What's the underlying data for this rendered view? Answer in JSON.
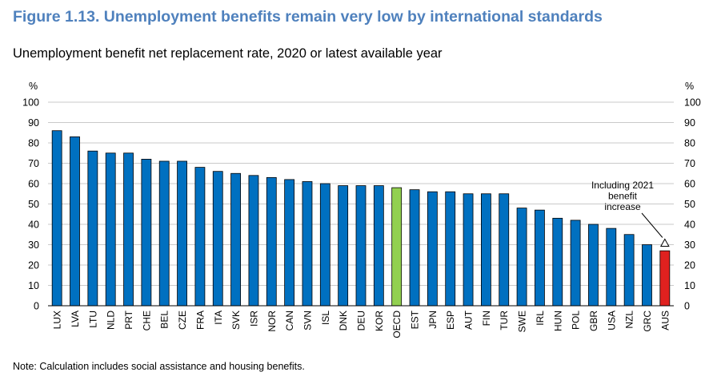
{
  "title": "Figure 1.13. Unemployment benefits remain very low by international standards",
  "subtitle": "Unemployment benefit net replacement rate, 2020 or latest available year",
  "note": "Note: Calculation includes social assistance and housing benefits.",
  "colors": {
    "title": "#4f81bd",
    "bar": "#0070c0",
    "oecd": "#92d050",
    "highlight": "#e0211f",
    "grid": "#c9c9c9"
  },
  "chart_data": {
    "type": "bar",
    "ylabel_left": "%",
    "ylabel_right": "%",
    "ylim": [
      0,
      100
    ],
    "yticks": [
      0,
      10,
      20,
      30,
      40,
      50,
      60,
      70,
      80,
      90,
      100
    ],
    "grid": true,
    "categories": [
      "LUX",
      "LVA",
      "LTU",
      "NLD",
      "PRT",
      "CHE",
      "BEL",
      "CZE",
      "FRA",
      "ITA",
      "SVK",
      "ISR",
      "NOR",
      "CAN",
      "SVN",
      "ISL",
      "DNK",
      "DEU",
      "KOR",
      "OECD",
      "EST",
      "JPN",
      "ESP",
      "AUT",
      "FIN",
      "TUR",
      "SWE",
      "IRL",
      "HUN",
      "POL",
      "GBR",
      "USA",
      "NZL",
      "GRC",
      "AUS"
    ],
    "values": [
      86,
      83,
      76,
      75,
      75,
      72,
      71,
      71,
      68,
      66,
      65,
      64,
      63,
      62,
      61,
      60,
      59,
      59,
      59,
      58,
      57,
      56,
      56,
      55,
      55,
      55,
      48,
      47,
      43,
      42,
      40,
      38,
      35,
      30,
      27
    ],
    "highlight": {
      "OECD": "oecd",
      "AUS": "highlight"
    },
    "marker": {
      "category": "AUS",
      "value": 30,
      "shape": "open-triangle"
    },
    "annotation": {
      "lines": [
        "Including 2021",
        "benefit",
        "increase"
      ],
      "target": "AUS"
    }
  }
}
